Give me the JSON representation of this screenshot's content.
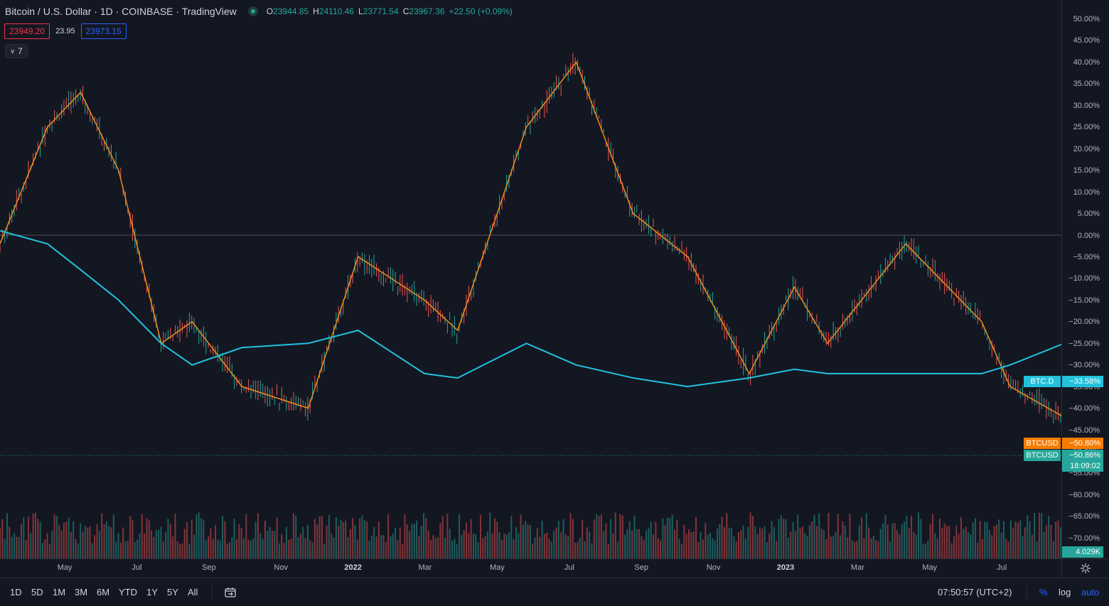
{
  "legend": {
    "title": "Bitcoin / U.S. Dollar · 1D · COINBASE · TradingView",
    "open_label": "O",
    "open": "23944.85",
    "high_label": "H",
    "high": "24110.46",
    "low_label": "L",
    "low": "23771.54",
    "close_label": "C",
    "close": "23967.36",
    "change": "+22.50 (+0.09%)"
  },
  "quote": {
    "bid": "23949.20",
    "spread": "23.95",
    "ask": "23973.15"
  },
  "indicators_count": "7",
  "price_scale": {
    "ticks": [
      "50.00%",
      "45.00%",
      "40.00%",
      "35.00%",
      "30.00%",
      "25.00%",
      "20.00%",
      "15.00%",
      "10.00%",
      "5.00%",
      "0.00%",
      "−5.00%",
      "−10.00%",
      "−15.00%",
      "−20.00%",
      "−25.00%",
      "−30.00%",
      "−35.00%",
      "−40.00%",
      "−45.00%",
      "−50.00%",
      "−55.00%",
      "−60.00%",
      "−65.00%",
      "−70.00%"
    ],
    "labels": {
      "btcd_name": "BTC.D",
      "btcd_value": "−33.58%",
      "btcusd1_name": "BTCUSD",
      "btcusd1_value": "−50.80%",
      "btcusd2_name": "BTCUSD",
      "btcusd2_value": "−50.86%",
      "countdown": "18:09:02",
      "volume": "4.029K"
    }
  },
  "time_axis": {
    "ticks": [
      {
        "label": "May",
        "bold": false
      },
      {
        "label": "Jul",
        "bold": false
      },
      {
        "label": "Sep",
        "bold": false
      },
      {
        "label": "Nov",
        "bold": false
      },
      {
        "label": "2022",
        "bold": true
      },
      {
        "label": "Mar",
        "bold": false
      },
      {
        "label": "May",
        "bold": false
      },
      {
        "label": "Jul",
        "bold": false
      },
      {
        "label": "Sep",
        "bold": false
      },
      {
        "label": "Nov",
        "bold": false
      },
      {
        "label": "2023",
        "bold": true
      },
      {
        "label": "Mar",
        "bold": false
      },
      {
        "label": "May",
        "bold": false
      },
      {
        "label": "Jul",
        "bold": false
      }
    ]
  },
  "toolbar": {
    "ranges": [
      "1D",
      "5D",
      "1M",
      "3M",
      "6M",
      "YTD",
      "1Y",
      "5Y",
      "All"
    ],
    "clock": "07:50:57 (UTC+2)",
    "percent": "%",
    "log": "log",
    "auto": "auto"
  },
  "colors": {
    "background": "#131722",
    "btcusd_up": "#26a69a",
    "btcusd_down": "#ef5350",
    "btcusd_line": "#f7931a",
    "btcd_line": "#22c1dc",
    "accent": "#2962ff"
  },
  "chart_data": {
    "type": "line",
    "scale": "percent",
    "ylim": [
      -75,
      52
    ],
    "x": [
      "2021-03-12",
      "2021-04-01",
      "2021-04-15",
      "2021-05-01",
      "2021-05-19",
      "2021-06-01",
      "2021-06-22",
      "2021-07-20",
      "2021-08-10",
      "2021-09-07",
      "2021-09-21",
      "2021-10-20",
      "2021-11-10",
      "2021-12-04",
      "2021-12-27",
      "2022-01-22",
      "2022-02-10",
      "2022-02-24",
      "2022-03-29",
      "2022-04-30",
      "2022-05-12",
      "2022-06-13",
      "2022-06-18",
      "2022-07-08",
      "2022-07-30",
      "2022-08-13"
    ],
    "series": [
      {
        "name": "BTCUSD",
        "values": [
          -2,
          25,
          33,
          15,
          -25,
          -20,
          -35,
          -40,
          -5,
          -15,
          -22,
          25,
          40,
          5,
          -5,
          -32,
          -12,
          -25,
          -2,
          -20,
          -35,
          -45,
          -65,
          -56,
          -50,
          -50.8
        ]
      },
      {
        "name": "BTC.D",
        "values": [
          1,
          -2,
          -8,
          -15,
          -25,
          -30,
          -26,
          -25,
          -22,
          -32,
          -33,
          -25,
          -30,
          -33,
          -35,
          -33,
          -31,
          -32,
          -32,
          -32,
          -30,
          -23,
          -21,
          -30,
          -31,
          -33.58
        ]
      }
    ]
  }
}
